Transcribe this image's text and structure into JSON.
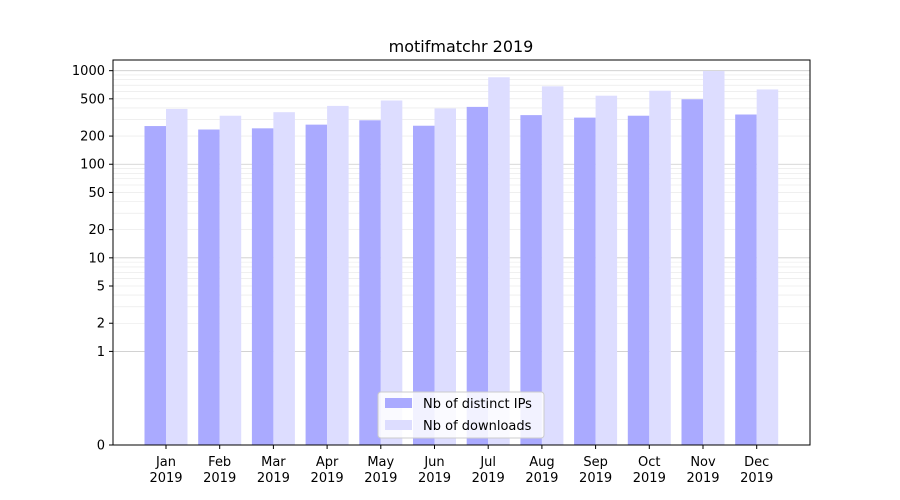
{
  "chart_data": {
    "type": "bar",
    "title": "motifmatchr 2019",
    "xlabel": "",
    "ylabel": "",
    "y_scale": "symlog",
    "ylim": [
      0,
      1300
    ],
    "grid": true,
    "legend_position": "lower center",
    "categories": [
      [
        "Jan",
        "2019"
      ],
      [
        "Feb",
        "2019"
      ],
      [
        "Mar",
        "2019"
      ],
      [
        "Apr",
        "2019"
      ],
      [
        "May",
        "2019"
      ],
      [
        "Jun",
        "2019"
      ],
      [
        "Jul",
        "2019"
      ],
      [
        "Aug",
        "2019"
      ],
      [
        "Sep",
        "2019"
      ],
      [
        "Oct",
        "2019"
      ],
      [
        "Nov",
        "2019"
      ],
      [
        "Dec",
        "2019"
      ]
    ],
    "y_ticks": [
      {
        "value": 0,
        "label": "0"
      },
      {
        "value": 1,
        "label": "1"
      },
      {
        "value": 2,
        "label": "2"
      },
      {
        "value": 5,
        "label": "5"
      },
      {
        "value": 10,
        "label": "10"
      },
      {
        "value": 20,
        "label": "20"
      },
      {
        "value": 50,
        "label": "50"
      },
      {
        "value": 100,
        "label": "100"
      },
      {
        "value": 200,
        "label": "200"
      },
      {
        "value": 500,
        "label": "500"
      },
      {
        "value": 1000,
        "label": "1000"
      }
    ],
    "series": [
      {
        "name": "Nb of distinct IPs",
        "color": "#aaaaff",
        "values": [
          256,
          235,
          242,
          265,
          295,
          258,
          410,
          335,
          315,
          330,
          495,
          340
        ]
      },
      {
        "name": "Nb of downloads",
        "color": "#ddddff",
        "values": [
          390,
          330,
          360,
          420,
          480,
          395,
          850,
          680,
          540,
          610,
          990,
          630
        ]
      }
    ]
  }
}
